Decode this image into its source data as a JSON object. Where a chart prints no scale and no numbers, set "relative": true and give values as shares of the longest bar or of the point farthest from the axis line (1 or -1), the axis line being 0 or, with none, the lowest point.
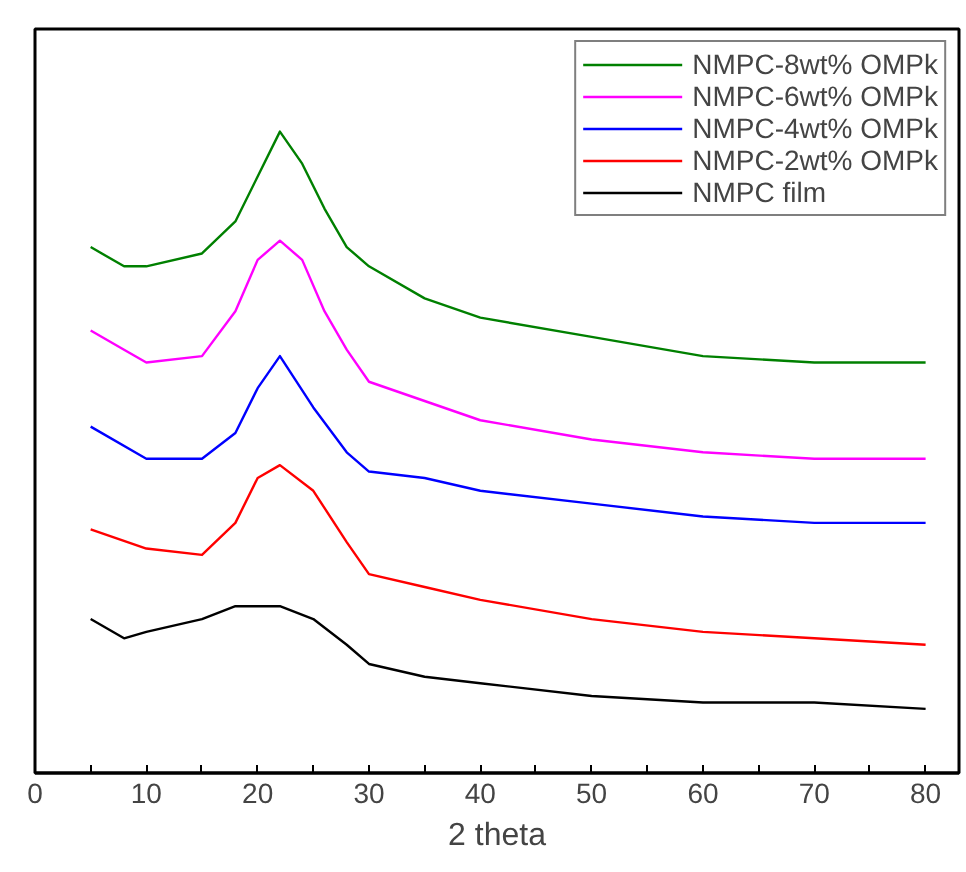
{
  "chart_data": {
    "type": "line",
    "xlabel": "2 theta",
    "relative": true,
    "xlim": [
      0,
      83
    ],
    "xticks": [
      0,
      {
        "value": 5,
        "label": null
      },
      10,
      {
        "value": 15,
        "label": null
      },
      20,
      {
        "value": 25,
        "label": null
      },
      30,
      {
        "value": 35,
        "label": null
      },
      40,
      {
        "value": 45,
        "label": null
      },
      50,
      {
        "value": 55,
        "label": null
      },
      60,
      {
        "value": 65,
        "label": null
      },
      70,
      {
        "value": 75,
        "label": null
      },
      80
    ],
    "legend": "top right",
    "grid": false,
    "marker": "none",
    "line_style": "solid",
    "series": [
      {
        "name": "NMPC-8wt% OMPk",
        "color": "#008000",
        "x": [
          5,
          8,
          10,
          15,
          18,
          20,
          22,
          24,
          26,
          28,
          30,
          35,
          40,
          50,
          60,
          70,
          80
        ],
        "values": [
          0.82,
          0.79,
          0.79,
          0.81,
          0.86,
          0.93,
          1.0,
          0.95,
          0.88,
          0.82,
          0.79,
          0.74,
          0.71,
          0.68,
          0.65,
          0.64,
          0.64
        ]
      },
      {
        "name": "NMPC-6wt% OMPk",
        "color": "#ff00ff",
        "x": [
          5,
          8,
          10,
          15,
          18,
          20,
          22,
          24,
          26,
          28,
          30,
          35,
          40,
          50,
          60,
          70,
          80
        ],
        "values": [
          0.69,
          0.66,
          0.64,
          0.65,
          0.72,
          0.8,
          0.83,
          0.8,
          0.72,
          0.66,
          0.61,
          0.58,
          0.55,
          0.52,
          0.5,
          0.49,
          0.49
        ]
      },
      {
        "name": "NMPC-4wt% OMPk",
        "color": "#0000ff",
        "x": [
          5,
          10,
          15,
          18,
          20,
          22,
          25,
          28,
          30,
          35,
          40,
          50,
          60,
          70,
          80
        ],
        "values": [
          0.54,
          0.49,
          0.49,
          0.53,
          0.6,
          0.65,
          0.57,
          0.5,
          0.47,
          0.46,
          0.44,
          0.42,
          0.4,
          0.39,
          0.39
        ]
      },
      {
        "name": "NMPC-2wt% OMPk",
        "color": "#ff0000",
        "x": [
          5,
          10,
          15,
          18,
          20,
          22,
          25,
          28,
          30,
          35,
          40,
          50,
          60,
          70,
          80
        ],
        "values": [
          0.38,
          0.35,
          0.34,
          0.39,
          0.46,
          0.48,
          0.44,
          0.36,
          0.31,
          0.29,
          0.27,
          0.24,
          0.22,
          0.21,
          0.2
        ]
      },
      {
        "name": "NMPC film",
        "color": "#000000",
        "x": [
          5,
          8,
          10,
          15,
          18,
          20,
          22,
          25,
          28,
          30,
          35,
          40,
          50,
          60,
          70,
          80
        ],
        "values": [
          0.24,
          0.21,
          0.22,
          0.24,
          0.26,
          0.26,
          0.26,
          0.24,
          0.2,
          0.17,
          0.15,
          0.14,
          0.12,
          0.11,
          0.11,
          0.1
        ]
      }
    ]
  }
}
